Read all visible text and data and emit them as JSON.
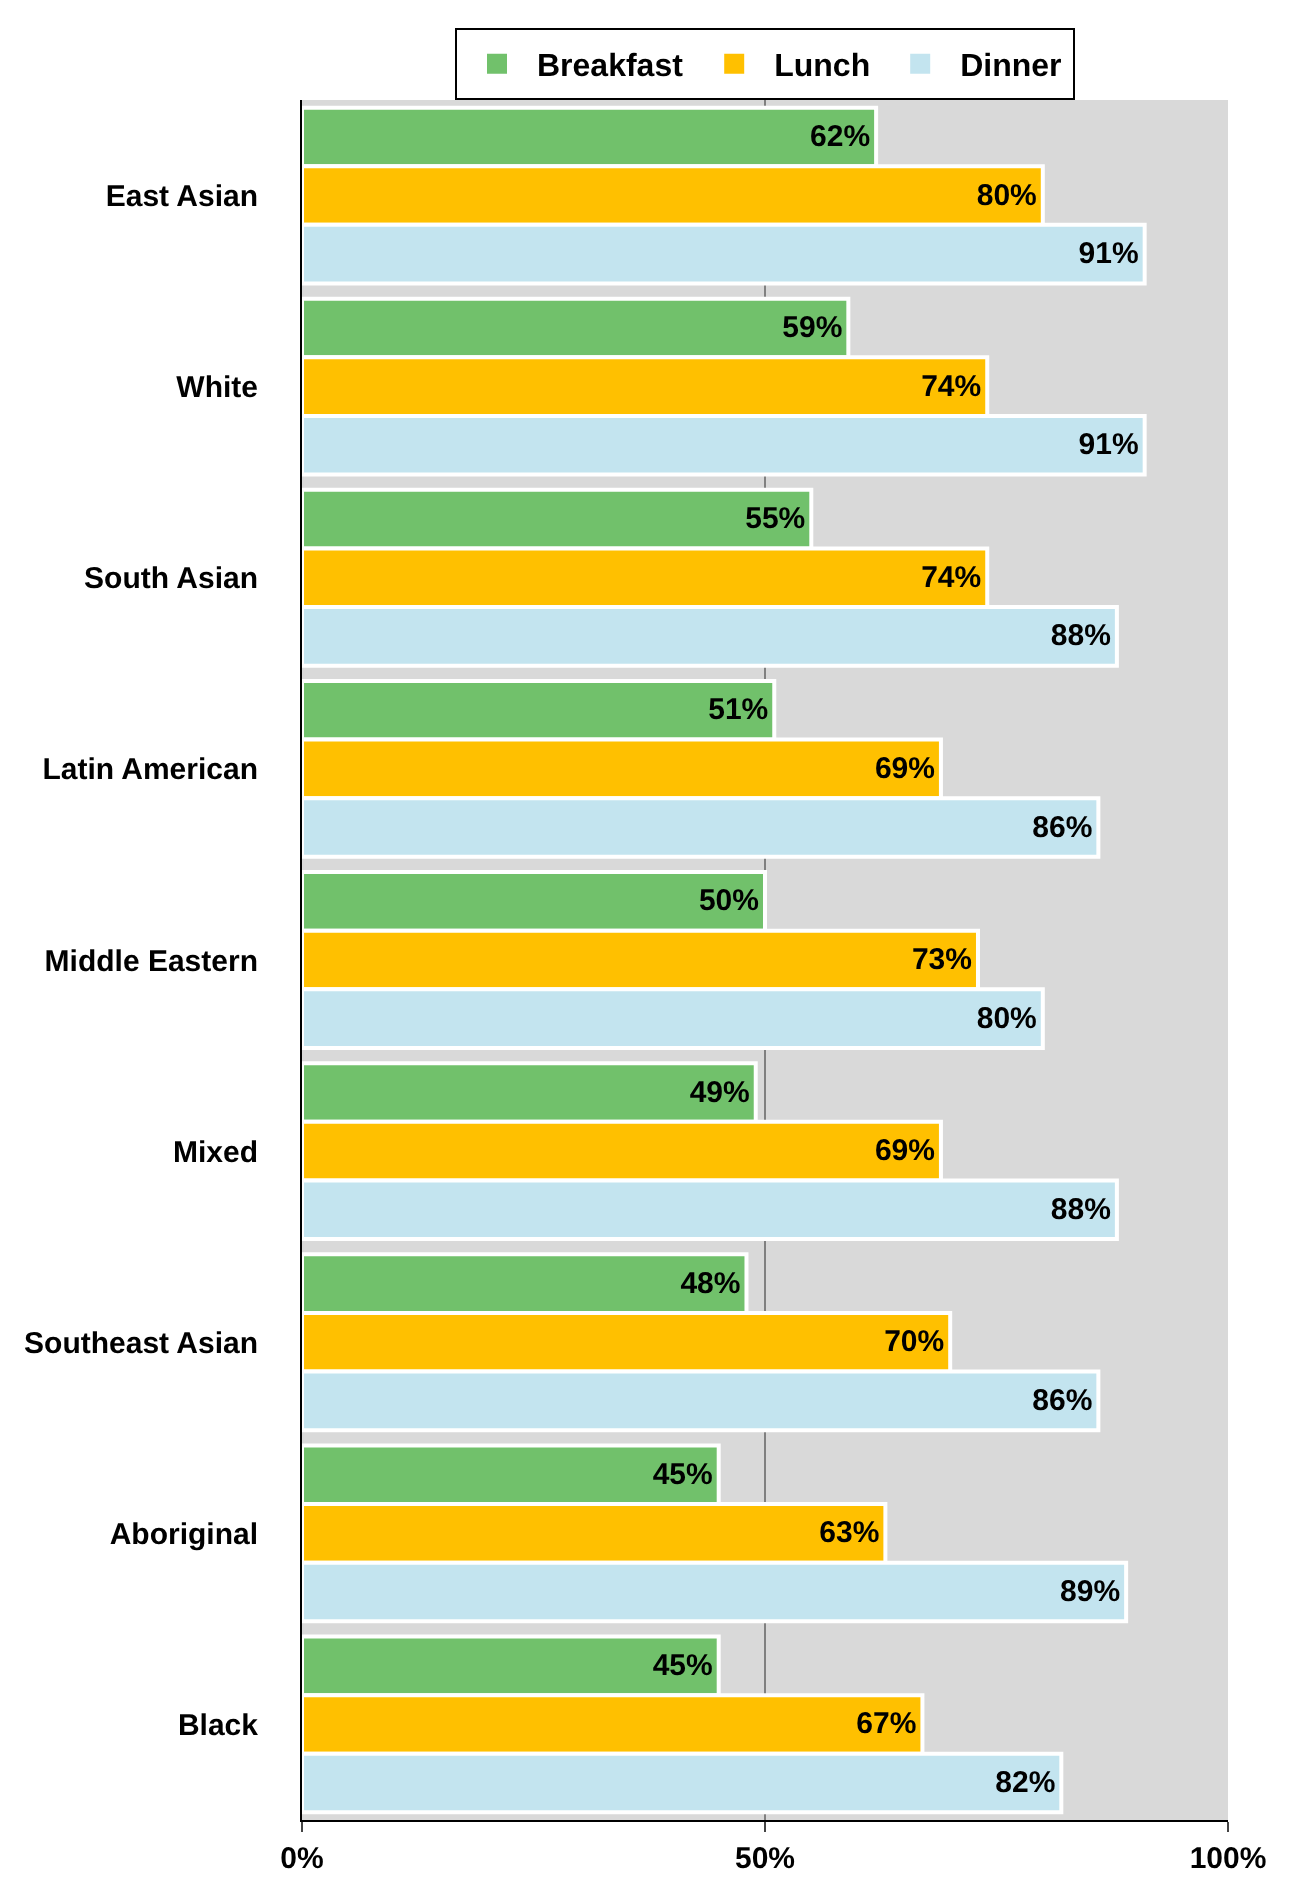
{
  "chart_data": {
    "type": "bar",
    "orientation": "horizontal",
    "categories": [
      "East Asian",
      "White",
      "South Asian",
      "Latin American",
      "Middle Eastern",
      "Mixed",
      "Southeast Asian",
      "Aboriginal",
      "Black"
    ],
    "series": [
      {
        "name": "Breakfast",
        "color": "#71c16b",
        "values": [
          62,
          59,
          55,
          51,
          50,
          49,
          48,
          45,
          45
        ],
        "value_labels": [
          "62%",
          "59%",
          "55%",
          "51%",
          "50%",
          "49%",
          "48%",
          "45%",
          "45%"
        ]
      },
      {
        "name": "Lunch",
        "color": "#ffc000",
        "values": [
          80,
          74,
          74,
          69,
          73,
          69,
          70,
          63,
          67
        ],
        "value_labels": [
          "80%",
          "74%",
          "74%",
          "69%",
          "73%",
          "69%",
          "70%",
          "63%",
          "67%"
        ]
      },
      {
        "name": "Dinner",
        "color": "#c3e4ef",
        "values": [
          91,
          91,
          88,
          86,
          80,
          88,
          86,
          89,
          82
        ],
        "value_labels": [
          "91%",
          "91%",
          "88%",
          "86%",
          "80%",
          "88%",
          "86%",
          "89%",
          "82%"
        ]
      }
    ],
    "xlim": [
      0,
      100
    ],
    "xticks": [
      {
        "value": 0,
        "label": "0%"
      },
      {
        "value": 50,
        "label": "50%"
      },
      {
        "value": 100,
        "label": "100%"
      }
    ],
    "grid": "x",
    "legend": "top"
  }
}
